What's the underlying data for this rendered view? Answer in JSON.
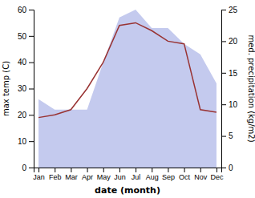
{
  "chart_data": {
    "type": "line",
    "categories": [
      "Jan",
      "Feb",
      "Mar",
      "Apr",
      "May",
      "Jun",
      "Jul",
      "Aug",
      "Sep",
      "Oct",
      "Nov",
      "Dec"
    ],
    "xlabel": "date (month)",
    "ylabel": "max temp (C)",
    "y2label": "med. precipitation (kg/m2)",
    "ylim": [
      0,
      60
    ],
    "yticks": [
      0,
      10,
      20,
      30,
      40,
      50,
      60
    ],
    "y2lim": [
      0,
      25
    ],
    "y2ticks": [
      0,
      5,
      10,
      15,
      20,
      25
    ],
    "series": [
      {
        "type": "area",
        "color": "#b0b8e8",
        "values": [
          26,
          22,
          22,
          22,
          40,
          57,
          60,
          53,
          53,
          47,
          43,
          32
        ]
      },
      {
        "type": "line",
        "color": "#993333",
        "values": [
          19,
          20,
          22,
          30,
          40,
          54,
          55,
          52,
          48,
          47,
          22,
          21
        ]
      }
    ]
  }
}
